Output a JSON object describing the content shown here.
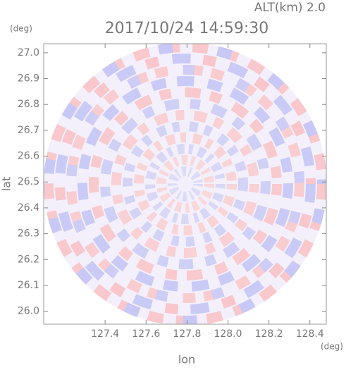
{
  "chart_data": {
    "type": "radar-ppi",
    "title": "2017/10/24 14:59:30",
    "subtitle": "ALT(km) 2.0",
    "x_label": "lon",
    "y_label": "lat",
    "x_unit": "(deg)",
    "y_unit": "(deg)",
    "xlim": [
      127.1,
      128.48
    ],
    "ylim": [
      25.95,
      27.035
    ],
    "xticks": [
      {
        "value": 127.4,
        "label": "127.4"
      },
      {
        "value": 127.6,
        "label": "127.6"
      },
      {
        "value": 127.8,
        "label": "127.8"
      },
      {
        "value": 128.0,
        "label": "128.0"
      },
      {
        "value": 128.2,
        "label": "128.2"
      },
      {
        "value": 128.4,
        "label": "128.4"
      }
    ],
    "yticks": [
      {
        "value": 26.0,
        "label": "26.0"
      },
      26.1,
      26.2,
      26.3,
      26.4,
      26.5,
      26.6,
      26.7,
      26.8,
      26.9,
      {
        "value": 27.0,
        "label": "27.0"
      }
    ]
  }
}
